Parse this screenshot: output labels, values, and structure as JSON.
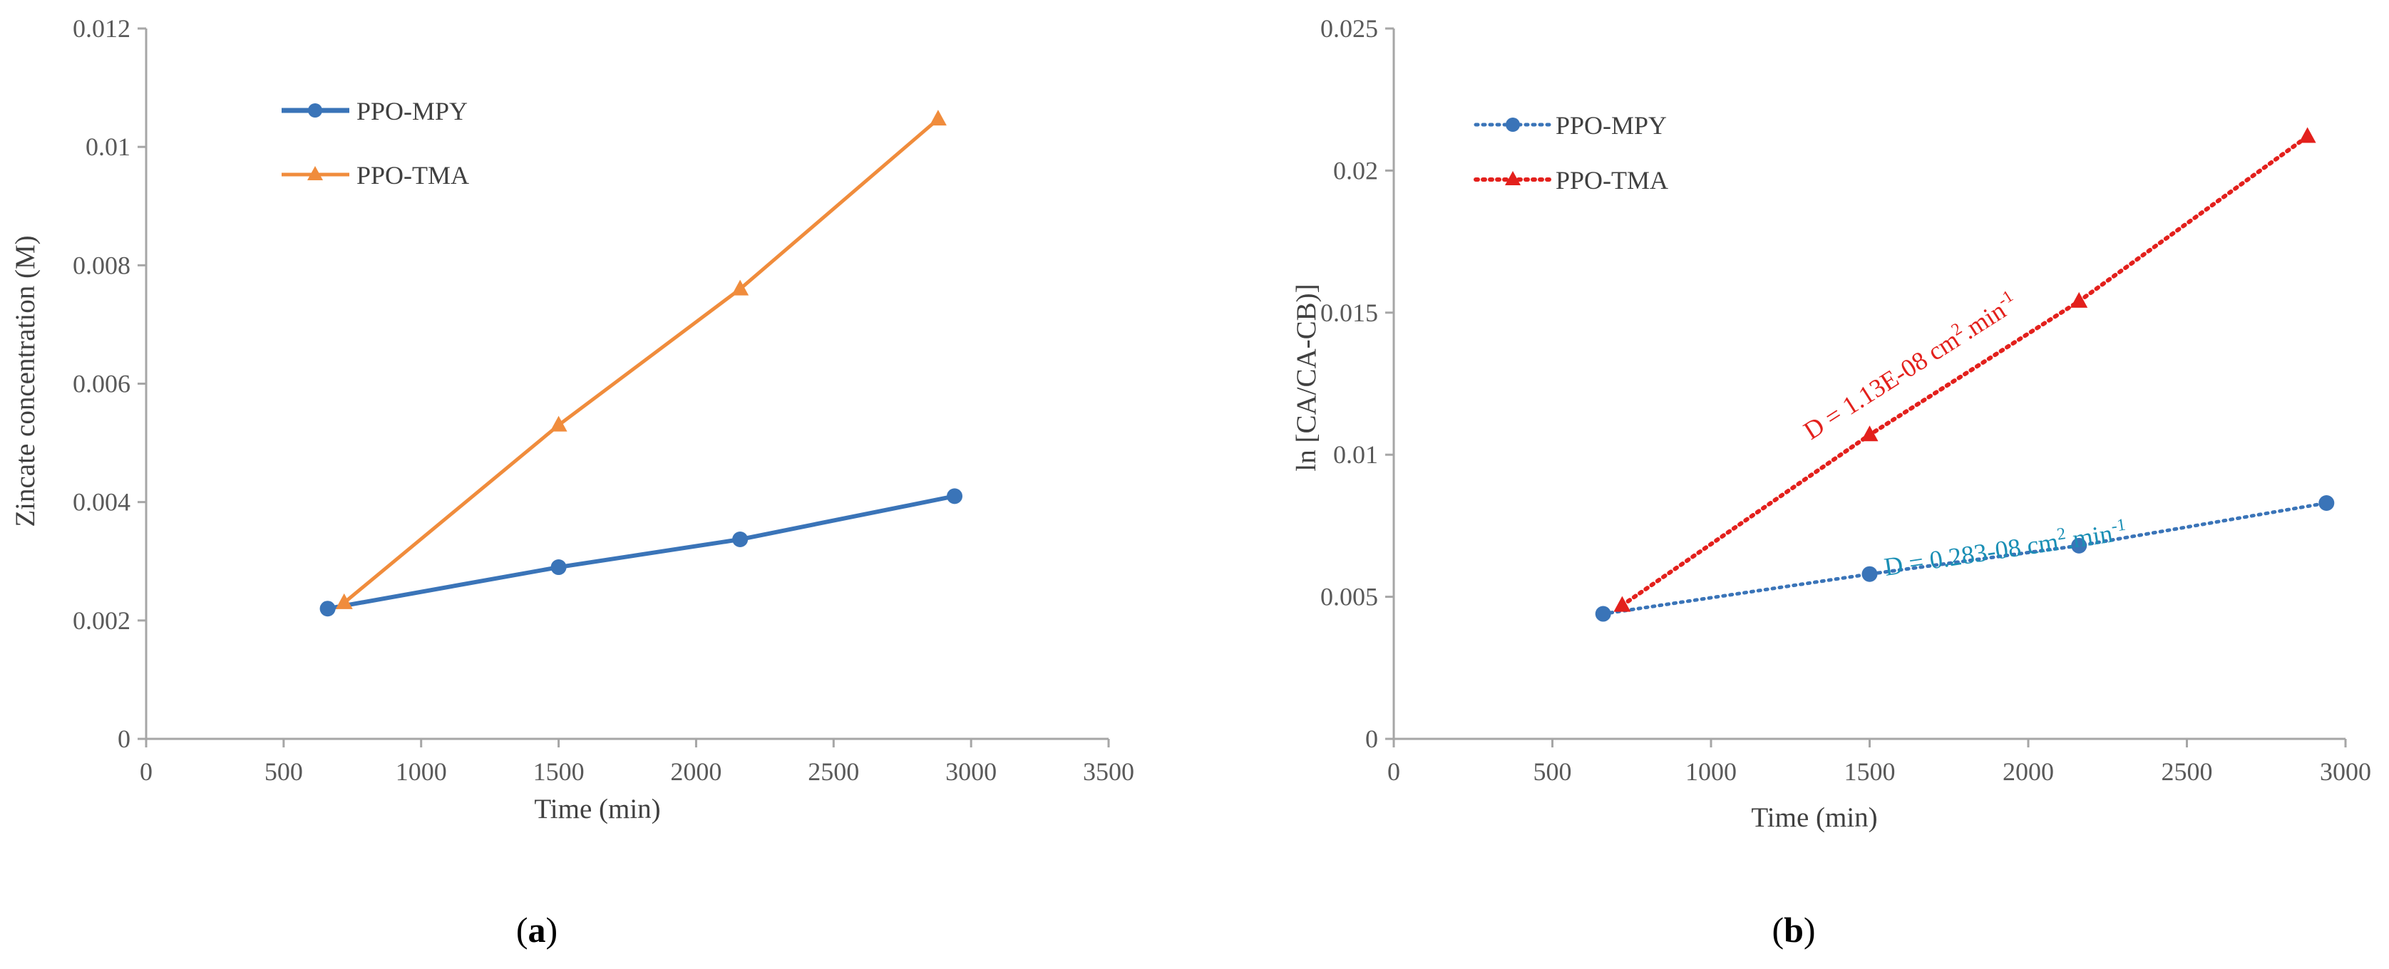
{
  "colors": {
    "blue": "#3a74b8",
    "orange": "#f08c3c",
    "red": "#e3201c",
    "teal_annotation": "#1a8fb5",
    "axis": "#a6a6a6"
  },
  "chart_data": [
    {
      "type": "line",
      "panel": "a",
      "panel_label": {
        "open": "(",
        "letter": "a",
        "close": ")"
      },
      "xlabel": "Time (min)",
      "ylabel": "Zincate concentration (M)",
      "xlim": [
        0,
        3500
      ],
      "ylim": [
        0,
        0.012
      ],
      "x_ticks": [
        0,
        500,
        1000,
        1500,
        2000,
        2500,
        3000,
        3500
      ],
      "x_tick_labels": [
        "0",
        "500",
        "1000",
        "1500",
        "2000",
        "2500",
        "3000",
        "3500"
      ],
      "y_ticks": [
        0,
        0.002,
        0.004,
        0.006,
        0.008,
        0.01,
        0.012
      ],
      "y_tick_labels": [
        "0",
        "0.002",
        "0.004",
        "0.006",
        "0.008",
        "0.01",
        "0.012"
      ],
      "legend_position": "top-left",
      "series": [
        {
          "name": "PPO-MPY",
          "color": "#3a74b8",
          "marker": "circle",
          "style": "solid",
          "x": [
            660,
            1500,
            2160,
            2940
          ],
          "y": [
            0.0022,
            0.0029,
            0.00337,
            0.0041
          ]
        },
        {
          "name": "PPO-TMA",
          "color": "#f08c3c",
          "marker": "triangle",
          "style": "solid",
          "x": [
            720,
            1500,
            2160,
            2880
          ],
          "y": [
            0.0023,
            0.0053,
            0.0076,
            0.01047
          ]
        }
      ]
    },
    {
      "type": "line",
      "panel": "b",
      "panel_label": {
        "open": "(",
        "letter": "b",
        "close": ")"
      },
      "xlabel": "Time (min)",
      "ylabel": "ln [CA/CA-CB)]",
      "xlim": [
        0,
        3000
      ],
      "ylim": [
        0,
        0.025
      ],
      "x_ticks": [
        0,
        500,
        1000,
        1500,
        2000,
        2500,
        3000
      ],
      "x_tick_labels": [
        "0",
        "500",
        "1000",
        "1500",
        "2000",
        "2500",
        "3000"
      ],
      "y_ticks": [
        0,
        0.005,
        0.01,
        0.015,
        0.02,
        0.025
      ],
      "y_tick_labels": [
        "0",
        "0.005",
        "0.01",
        "0.015",
        "0.02",
        "0.025"
      ],
      "legend_position": "top-left",
      "series": [
        {
          "name": "PPO-MPY",
          "color": "#3a74b8",
          "marker": "circle",
          "style": "dotted",
          "x": [
            660,
            1500,
            2160,
            2940
          ],
          "y": [
            0.0044,
            0.0058,
            0.0068,
            0.0083
          ]
        },
        {
          "name": "PPO-TMA",
          "color": "#e3201c",
          "marker": "triangle",
          "style": "dotted",
          "x": [
            720,
            1500,
            2160,
            2880
          ],
          "y": [
            0.0047,
            0.0107,
            0.0154,
            0.0212
          ]
        }
      ],
      "annotations": [
        {
          "text": "D = 1.13E-08 cm",
          "sup1": "2",
          "mid": ".min",
          "sup2": "-1",
          "color": "#e3201c",
          "series": "PPO-TMA"
        },
        {
          "text": "D = 0.283-08 cm",
          "sup1": "2",
          "mid": ".min",
          "sup2": "-1",
          "color": "#1a8fb5",
          "series": "PPO-MPY"
        }
      ]
    }
  ]
}
